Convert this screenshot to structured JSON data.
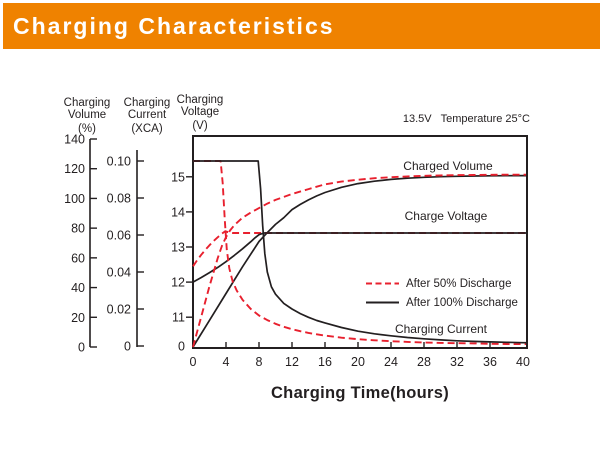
{
  "header": {
    "title": "Charging Characteristics",
    "banner_color": "#ef8200",
    "title_color": "#ffffff"
  },
  "chart_data": {
    "type": "line",
    "title": "Charging Characteristics",
    "xlabel": "Charging Time(hours)",
    "xlim": [
      0,
      40
    ],
    "x_ticks": [
      0,
      4,
      8,
      12,
      16,
      20,
      24,
      28,
      32,
      36,
      40
    ],
    "annotation": "13.5V   Temperature 25°C",
    "grid": false,
    "legend_position": "inside-right",
    "colors": {
      "red": "#e8202e",
      "black": "#231f20"
    },
    "axes": {
      "volume": {
        "title_lines": [
          "Charging",
          "Volume"
        ],
        "unit": "(%)",
        "ticks": [
          0,
          20,
          40,
          60,
          80,
          100,
          120,
          140
        ],
        "range": [
          0,
          140
        ]
      },
      "current": {
        "title_lines": [
          "Charging",
          "Current"
        ],
        "unit": "(XCA)",
        "ticks": [
          0,
          0.02,
          0.04,
          0.06,
          0.08,
          0.1
        ],
        "tick_labels": [
          "0",
          "0.02",
          "0.04",
          "0.06",
          "0.08",
          "0.10"
        ],
        "range": [
          0,
          0.1
        ]
      },
      "voltage": {
        "title_lines": [
          "Charging",
          "Voltage"
        ],
        "unit": "(V)",
        "ticks": [
          11,
          12,
          13,
          14,
          15
        ],
        "zero_label": "0",
        "range_shown": [
          11,
          15
        ]
      }
    },
    "curve_labels": {
      "charged_volume": "Charged Volume",
      "charge_voltage": "Charge Voltage",
      "charging_current": "Charging Current"
    },
    "legend": [
      {
        "label": "After 50% Discharge",
        "style": "dashed",
        "color_key": "red"
      },
      {
        "label": "After 100% Discharge",
        "style": "solid",
        "color_key": "black"
      }
    ],
    "series": [
      {
        "name": "charged-volume-after-100-discharge",
        "quantity": "volume",
        "discharge": "100%",
        "color_key": "black",
        "dashed": false,
        "points": [
          [
            0,
            0
          ],
          [
            2,
            18
          ],
          [
            4,
            36
          ],
          [
            6,
            54
          ],
          [
            8,
            71
          ],
          [
            9,
            77
          ],
          [
            10,
            82.5
          ],
          [
            11,
            87
          ],
          [
            12,
            92.5
          ],
          [
            13,
            96
          ],
          [
            14,
            99
          ],
          [
            15,
            101.7
          ],
          [
            16,
            104
          ],
          [
            18,
            107.5
          ],
          [
            20,
            110
          ],
          [
            22,
            111.6
          ],
          [
            24,
            112.8
          ],
          [
            26,
            113.6
          ],
          [
            28,
            114.2
          ],
          [
            30,
            114.6
          ],
          [
            32,
            114.9
          ],
          [
            34,
            115.1
          ],
          [
            36,
            115.2
          ],
          [
            38,
            115.3
          ],
          [
            40,
            115.4
          ]
        ]
      },
      {
        "name": "charge-voltage-after-50-discharge",
        "quantity": "voltage",
        "discharge": "50%",
        "color_key": "red",
        "dashed": true,
        "points": [
          [
            0,
            12.45
          ],
          [
            0.5,
            12.62
          ],
          [
            1,
            12.78
          ],
          [
            1.5,
            12.92
          ],
          [
            2,
            13.05
          ],
          [
            2.5,
            13.17
          ],
          [
            3,
            13.28
          ],
          [
            3.5,
            13.38
          ],
          [
            3.9,
            13.45
          ],
          [
            4.3,
            13.42
          ],
          [
            4.8,
            13.4
          ],
          [
            40,
            13.4
          ]
        ]
      },
      {
        "name": "charge-voltage-after-100-discharge",
        "quantity": "voltage",
        "discharge": "100%",
        "color_key": "black",
        "dashed": false,
        "points": [
          [
            0,
            12.0
          ],
          [
            1,
            12.13
          ],
          [
            2,
            12.27
          ],
          [
            3,
            12.42
          ],
          [
            4,
            12.58
          ],
          [
            5,
            12.76
          ],
          [
            6,
            12.95
          ],
          [
            7,
            13.15
          ],
          [
            7.5,
            13.26
          ],
          [
            8,
            13.35
          ],
          [
            8.6,
            13.4
          ],
          [
            40,
            13.4
          ]
        ]
      },
      {
        "name": "charging-current-after-50-discharge",
        "quantity": "current",
        "discharge": "50%",
        "color_key": "red",
        "dashed": true,
        "points": [
          [
            0,
            0.1
          ],
          [
            3.35,
            0.1
          ],
          [
            3.6,
            0.088
          ],
          [
            3.85,
            0.068
          ],
          [
            4.1,
            0.052
          ],
          [
            4.4,
            0.042
          ],
          [
            4.8,
            0.035
          ],
          [
            5.3,
            0.03
          ],
          [
            6,
            0.025
          ],
          [
            7,
            0.02
          ],
          [
            8,
            0.0165
          ],
          [
            9,
            0.014
          ],
          [
            10,
            0.012
          ],
          [
            11,
            0.0104
          ],
          [
            12,
            0.0091
          ],
          [
            13,
            0.008
          ],
          [
            14,
            0.0071
          ],
          [
            15,
            0.0063
          ],
          [
            16,
            0.0056
          ],
          [
            18,
            0.0045
          ],
          [
            20,
            0.0037
          ],
          [
            22,
            0.0031
          ],
          [
            24,
            0.0026
          ],
          [
            26,
            0.0022
          ],
          [
            28,
            0.0019
          ],
          [
            30,
            0.0017
          ],
          [
            32,
            0.0015
          ],
          [
            34,
            0.0014
          ],
          [
            36,
            0.0012
          ],
          [
            38,
            0.0011
          ],
          [
            40,
            0.001
          ]
        ]
      },
      {
        "name": "charging-current-after-100-discharge",
        "quantity": "current",
        "discharge": "100%",
        "color_key": "black",
        "dashed": false,
        "points": [
          [
            0,
            0.1
          ],
          [
            7.9,
            0.1
          ],
          [
            8.2,
            0.085
          ],
          [
            8.45,
            0.065
          ],
          [
            8.7,
            0.05
          ],
          [
            9,
            0.04
          ],
          [
            9.5,
            0.032
          ],
          [
            10,
            0.028
          ],
          [
            11,
            0.023
          ],
          [
            12,
            0.02
          ],
          [
            13,
            0.0175
          ],
          [
            14,
            0.0155
          ],
          [
            15,
            0.0138
          ],
          [
            16,
            0.0125
          ],
          [
            18,
            0.01
          ],
          [
            20,
            0.008
          ],
          [
            22,
            0.0066
          ],
          [
            24,
            0.0055
          ],
          [
            26,
            0.0046
          ],
          [
            28,
            0.0039
          ],
          [
            30,
            0.0033
          ],
          [
            32,
            0.0028
          ],
          [
            34,
            0.0025
          ],
          [
            36,
            0.0022
          ],
          [
            38,
            0.002
          ],
          [
            40,
            0.0018
          ]
        ]
      },
      {
        "name": "charged-volume-after-50-discharge",
        "quantity": "volume",
        "discharge": "50%",
        "color_key": "red",
        "dashed": true,
        "points": [
          [
            0,
            0
          ],
          [
            1,
            20.5
          ],
          [
            2,
            41
          ],
          [
            3,
            60
          ],
          [
            3.5,
            68
          ],
          [
            4,
            74
          ],
          [
            4.5,
            78.5
          ],
          [
            5,
            82
          ],
          [
            6,
            87
          ],
          [
            7,
            90.5
          ],
          [
            8,
            93.5
          ],
          [
            9,
            96.5
          ],
          [
            10,
            99
          ],
          [
            11,
            101
          ],
          [
            12,
            103
          ],
          [
            14,
            106.3
          ],
          [
            16,
            109.5
          ],
          [
            18,
            111.3
          ],
          [
            20,
            112.6
          ],
          [
            22,
            113.6
          ],
          [
            24,
            114.3
          ],
          [
            26,
            114.8
          ],
          [
            28,
            115.2
          ],
          [
            30,
            115.5
          ],
          [
            32,
            115.7
          ],
          [
            34,
            115.8
          ],
          [
            36,
            115.9
          ],
          [
            38,
            116
          ],
          [
            40,
            116
          ]
        ]
      }
    ]
  }
}
